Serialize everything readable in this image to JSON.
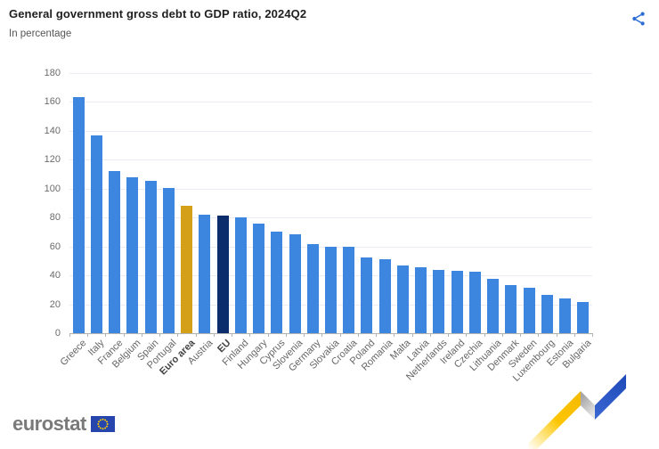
{
  "header": {
    "title": "General government gross debt to GDP ratio, 2024Q2",
    "subtitle": "In percentage"
  },
  "chart_data": {
    "type": "bar",
    "title": "General government gross debt to GDP ratio, 2024Q2",
    "subtitle": "In percentage",
    "xlabel": "",
    "ylabel": "In percentage",
    "ylim": [
      0,
      180
    ],
    "yticks": [
      0,
      20,
      40,
      60,
      80,
      100,
      120,
      140,
      160,
      180
    ],
    "grid": true,
    "legend": "none",
    "categories": [
      "Greece",
      "Italy",
      "France",
      "Belgium",
      "Spain",
      "Portugal",
      "Euro area",
      "Austria",
      "EU",
      "Finland",
      "Hungary",
      "Cyprus",
      "Slovenia",
      "Germany",
      "Slovakia",
      "Croatia",
      "Poland",
      "Romania",
      "Malta",
      "Latvia",
      "Netherlands",
      "Ireland",
      "Czechia",
      "Lithuania",
      "Denmark",
      "Sweden",
      "Luxembourg",
      "Estonia",
      "Bulgaria"
    ],
    "values": [
      163.6,
      137.0,
      112.2,
      108.0,
      105.3,
      100.6,
      88.1,
      82.0,
      81.5,
      80.3,
      76.0,
      70.0,
      68.4,
      61.9,
      60.1,
      59.5,
      52.2,
      50.9,
      46.9,
      45.9,
      43.5,
      43.0,
      42.5,
      37.5,
      33.5,
      31.5,
      26.8,
      23.8,
      21.8
    ],
    "bar_color": "#3d86e0",
    "highlights": [
      {
        "category": "Euro area",
        "color": "#d4a017"
      },
      {
        "category": "EU",
        "color": "#0c2d6b"
      }
    ],
    "bold_categories": [
      "Euro area",
      "EU"
    ]
  },
  "colors": {
    "bar_blue": "#3d86e0",
    "highlight_gold": "#d4a017",
    "highlight_navy": "#0c2d6b",
    "share_icon": "#2a6bd4",
    "gridline": "#ebebf3",
    "axis": "#b3b3b3"
  },
  "footer": {
    "logo_text": "eurostat"
  }
}
